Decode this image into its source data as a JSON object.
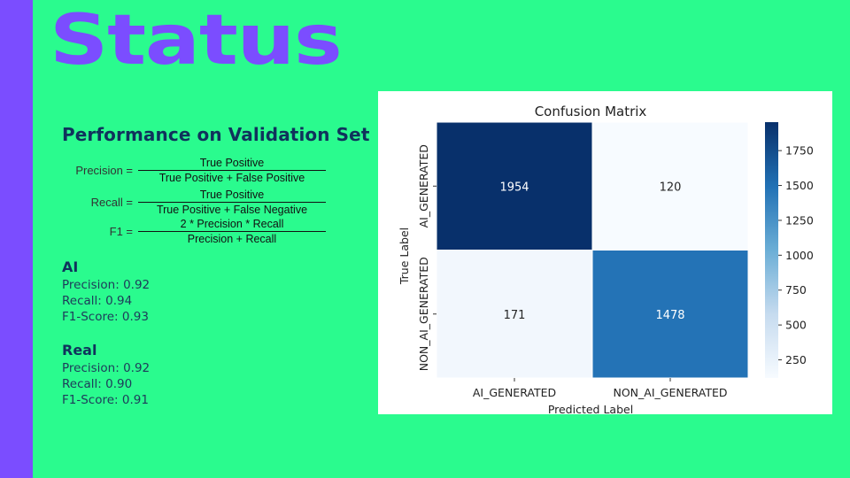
{
  "slide": {
    "title": "Status",
    "section_title": "Performance on Validation Set",
    "colors": {
      "background": "#2afb8e",
      "accent": "#7b4dff",
      "heading": "#10325c"
    }
  },
  "formulas": {
    "precision": {
      "lhs": "Precision =",
      "numerator": "True Positive",
      "denominator": "True Positive + False Positive"
    },
    "recall": {
      "lhs": "Recall =",
      "numerator": "True Positive",
      "denominator": "True Positive + False Negative"
    },
    "f1": {
      "lhs": "F1 =",
      "numerator": "2 * Precision * Recall",
      "denominator": "Precision + Recall"
    }
  },
  "metrics": {
    "ai": {
      "heading": "AI",
      "precision": "Precision: 0.92",
      "recall": "Recall: 0.94",
      "f1": "F1-Score: 0.93"
    },
    "real": {
      "heading": "Real",
      "precision": "Precision: 0.92",
      "recall": "Recall: 0.90",
      "f1": "F1-Score: 0.91"
    }
  },
  "chart_data": {
    "type": "heatmap",
    "title": "Confusion Matrix",
    "xlabel": "Predicted Label",
    "ylabel": "True Label",
    "x_categories": [
      "AI_GENERATED",
      "NON_AI_GENERATED"
    ],
    "y_categories": [
      "AI_GENERATED",
      "NON_AI_GENERATED"
    ],
    "values": [
      [
        1954,
        120
      ],
      [
        171,
        1478
      ]
    ],
    "colormap": "Blues",
    "colorbar": {
      "range": [
        120,
        1954
      ],
      "ticks": [
        250,
        500,
        750,
        1000,
        1250,
        1500,
        1750
      ]
    }
  }
}
